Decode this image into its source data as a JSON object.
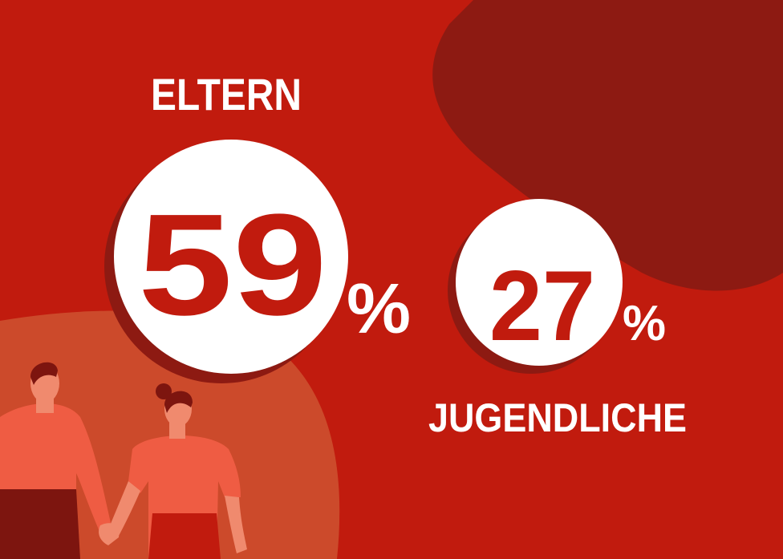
{
  "items": [
    {
      "label": "ELTERN",
      "value": 59,
      "unit": "%"
    },
    {
      "label": "JUGENDLICHE",
      "value": 27,
      "unit": "%"
    }
  ]
}
